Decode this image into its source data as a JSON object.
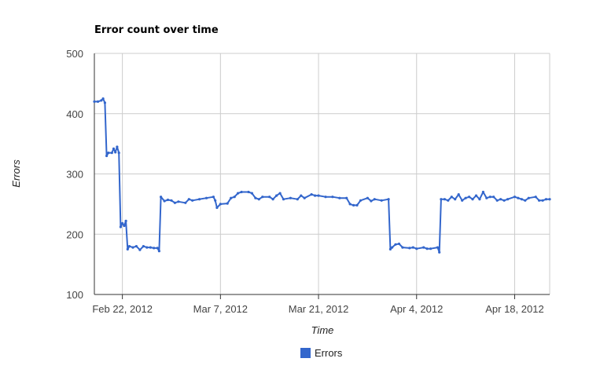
{
  "chart_data": {
    "type": "line",
    "title": "Error count over time",
    "xlabel": "Time",
    "ylabel": "Errors",
    "ylim": [
      100,
      500
    ],
    "y_ticks": [
      100,
      200,
      300,
      400,
      500
    ],
    "xlim": [
      "2012-02-18",
      "2012-04-23"
    ],
    "x_ticks": [
      {
        "date": "2012-02-22",
        "label": "Feb 22, 2012"
      },
      {
        "date": "2012-03-07",
        "label": "Mar 7, 2012"
      },
      {
        "date": "2012-03-21",
        "label": "Mar 21, 2012"
      },
      {
        "date": "2012-04-04",
        "label": "Apr 4, 2012"
      },
      {
        "date": "2012-04-18",
        "label": "Apr 18, 2012"
      }
    ],
    "grid": true,
    "legend_position": "bottom",
    "series": [
      {
        "name": "Errors",
        "color": "#3366cc",
        "points": [
          [
            "2012-02-18",
            420
          ],
          [
            "2012-02-18T12:00",
            420
          ],
          [
            "2012-02-19",
            422
          ],
          [
            "2012-02-19T06:00",
            425
          ],
          [
            "2012-02-19T12:00",
            418
          ],
          [
            "2012-02-19T18:00",
            330
          ],
          [
            "2012-02-20",
            335
          ],
          [
            "2012-02-20T12:00",
            335
          ],
          [
            "2012-02-20T18:00",
            342
          ],
          [
            "2012-02-21",
            336
          ],
          [
            "2012-02-21T06:00",
            345
          ],
          [
            "2012-02-21T12:00",
            335
          ],
          [
            "2012-02-21T18:00",
            212
          ],
          [
            "2012-02-22",
            218
          ],
          [
            "2012-02-22T06:00",
            214
          ],
          [
            "2012-02-22T12:00",
            222
          ],
          [
            "2012-02-22T18:00",
            175
          ],
          [
            "2012-02-23",
            180
          ],
          [
            "2012-02-23T12:00",
            178
          ],
          [
            "2012-02-24",
            180
          ],
          [
            "2012-02-24T12:00",
            174
          ],
          [
            "2012-02-25",
            180
          ],
          [
            "2012-02-25T12:00",
            178
          ],
          [
            "2012-02-26",
            178
          ],
          [
            "2012-02-26T12:00",
            177
          ],
          [
            "2012-02-27",
            177
          ],
          [
            "2012-02-27T06:00",
            172
          ],
          [
            "2012-02-27T12:00",
            262
          ],
          [
            "2012-02-28",
            255
          ],
          [
            "2012-02-28T12:00",
            257
          ],
          [
            "2012-02-29",
            256
          ],
          [
            "2012-02-29T12:00",
            252
          ],
          [
            "2012-03-01",
            254
          ],
          [
            "2012-03-02",
            252
          ],
          [
            "2012-03-02T12:00",
            258
          ],
          [
            "2012-03-03",
            256
          ],
          [
            "2012-03-04",
            258
          ],
          [
            "2012-03-05",
            260
          ],
          [
            "2012-03-06",
            262
          ],
          [
            "2012-03-06T06:00",
            256
          ],
          [
            "2012-03-06T12:00",
            244
          ],
          [
            "2012-03-07",
            250
          ],
          [
            "2012-03-08",
            251
          ],
          [
            "2012-03-08T12:00",
            260
          ],
          [
            "2012-03-09",
            262
          ],
          [
            "2012-03-09T12:00",
            268
          ],
          [
            "2012-03-10",
            270
          ],
          [
            "2012-03-11",
            270
          ],
          [
            "2012-03-11T12:00",
            268
          ],
          [
            "2012-03-12",
            260
          ],
          [
            "2012-03-12T12:00",
            258
          ],
          [
            "2012-03-13",
            262
          ],
          [
            "2012-03-14",
            262
          ],
          [
            "2012-03-14T12:00",
            258
          ],
          [
            "2012-03-15",
            264
          ],
          [
            "2012-03-15T12:00",
            268
          ],
          [
            "2012-03-16",
            258
          ],
          [
            "2012-03-17",
            260
          ],
          [
            "2012-03-18",
            258
          ],
          [
            "2012-03-18T12:00",
            264
          ],
          [
            "2012-03-19",
            260
          ],
          [
            "2012-03-20",
            266
          ],
          [
            "2012-03-20T12:00",
            264
          ],
          [
            "2012-03-21",
            264
          ],
          [
            "2012-03-22",
            262
          ],
          [
            "2012-03-23",
            262
          ],
          [
            "2012-03-24",
            260
          ],
          [
            "2012-03-25",
            260
          ],
          [
            "2012-03-25T12:00",
            250
          ],
          [
            "2012-03-26",
            248
          ],
          [
            "2012-03-26T12:00",
            248
          ],
          [
            "2012-03-27",
            256
          ],
          [
            "2012-03-28",
            260
          ],
          [
            "2012-03-28T12:00",
            255
          ],
          [
            "2012-03-29",
            258
          ],
          [
            "2012-03-30",
            256
          ],
          [
            "2012-03-31",
            258
          ],
          [
            "2012-03-31T06:00",
            175
          ],
          [
            "2012-03-31T12:00",
            178
          ],
          [
            "2012-04-01",
            183
          ],
          [
            "2012-04-01T12:00",
            184
          ],
          [
            "2012-04-02",
            178
          ],
          [
            "2012-04-03",
            177
          ],
          [
            "2012-04-03T12:00",
            178
          ],
          [
            "2012-04-04",
            176
          ],
          [
            "2012-04-05",
            178
          ],
          [
            "2012-04-05T12:00",
            176
          ],
          [
            "2012-04-06",
            176
          ],
          [
            "2012-04-07",
            178
          ],
          [
            "2012-04-07T06:00",
            170
          ],
          [
            "2012-04-07T12:00",
            258
          ],
          [
            "2012-04-08",
            258
          ],
          [
            "2012-04-08T12:00",
            256
          ],
          [
            "2012-04-09",
            262
          ],
          [
            "2012-04-09T12:00",
            258
          ],
          [
            "2012-04-10",
            266
          ],
          [
            "2012-04-10T12:00",
            256
          ],
          [
            "2012-04-11",
            260
          ],
          [
            "2012-04-11T12:00",
            262
          ],
          [
            "2012-04-12",
            258
          ],
          [
            "2012-04-12T12:00",
            264
          ],
          [
            "2012-04-13",
            258
          ],
          [
            "2012-04-13T12:00",
            270
          ],
          [
            "2012-04-14",
            260
          ],
          [
            "2012-04-14T12:00",
            262
          ],
          [
            "2012-04-15",
            262
          ],
          [
            "2012-04-15T12:00",
            256
          ],
          [
            "2012-04-16",
            258
          ],
          [
            "2012-04-16T12:00",
            256
          ],
          [
            "2012-04-17",
            258
          ],
          [
            "2012-04-18",
            262
          ],
          [
            "2012-04-18T12:00",
            260
          ],
          [
            "2012-04-19",
            258
          ],
          [
            "2012-04-19T12:00",
            256
          ],
          [
            "2012-04-20",
            260
          ],
          [
            "2012-04-21",
            262
          ],
          [
            "2012-04-21T12:00",
            256
          ],
          [
            "2012-04-22",
            256
          ],
          [
            "2012-04-22T12:00",
            258
          ],
          [
            "2012-04-23",
            258
          ]
        ]
      }
    ]
  }
}
